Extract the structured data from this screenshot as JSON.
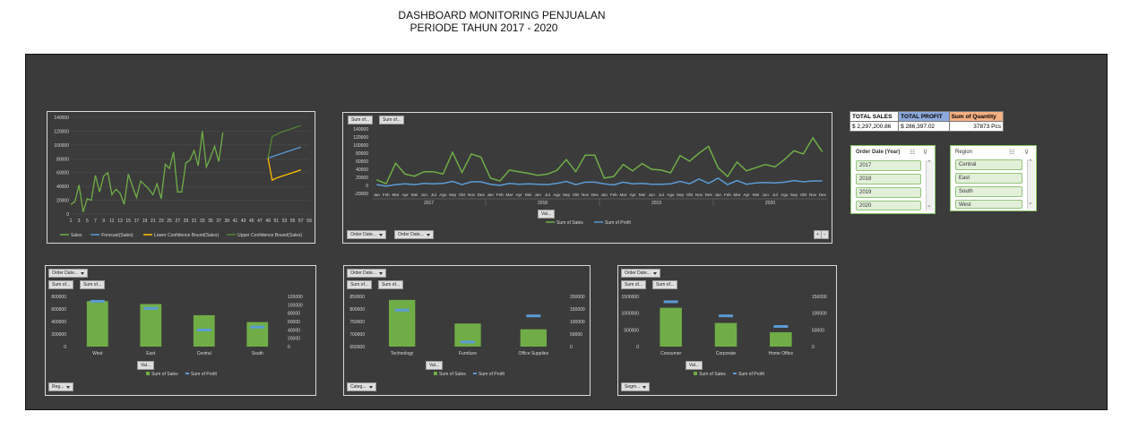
{
  "header": {
    "line1": "DASHBOARD MONITORING PENJUALAN",
    "line2": "PERIODE TAHUN 2017 - 2020"
  },
  "colors": {
    "sales": "#70ad47",
    "profit": "#5b9bd5",
    "lower": "#ffc000",
    "upper": "#548235",
    "panel": "#3b3b3b"
  },
  "kpi": {
    "headers": [
      "TOTAL SALES",
      "TOTAL PROFIT",
      "Sum of Quantity"
    ],
    "values": [
      "$ 2,297,200.86",
      "$ 286,397.02",
      "37873 Pcs"
    ]
  },
  "slicer_year": {
    "title": "Order Date (Year)",
    "items": [
      "2017",
      "2018",
      "2019",
      "2020"
    ]
  },
  "slicer_region": {
    "title": "Region",
    "items": [
      "Central",
      "East",
      "South",
      "West"
    ]
  },
  "forecast_chart": {
    "btns": [],
    "chart_data": {
      "type": "line",
      "ylim": [
        0,
        140000
      ],
      "yticks": [
        "0",
        "20000",
        "40000",
        "60000",
        "80000",
        "100000",
        "120000",
        "140000"
      ],
      "xticks": [
        "1",
        "3",
        "5",
        "7",
        "9",
        "11",
        "13",
        "15",
        "17",
        "19",
        "21",
        "23",
        "25",
        "27",
        "29",
        "31",
        "33",
        "35",
        "37",
        "39",
        "41",
        "43",
        "45",
        "47",
        "49",
        "51",
        "53",
        "55",
        "57",
        "59"
      ],
      "series": [
        {
          "name": "Sales",
          "values": [
            14000,
            18000,
            42000,
            3000,
            22000,
            20000,
            56000,
            32000,
            55000,
            60000,
            28000,
            36000,
            30000,
            14000,
            58000,
            40000,
            24000,
            48000,
            42000,
            36000,
            28000,
            44000,
            22000,
            72000,
            66000,
            90000,
            32000,
            32000,
            74000,
            78000,
            92000,
            70000,
            120000,
            68000,
            82000,
            98000,
            76000,
            118000
          ]
        },
        {
          "name": "Forecast(Sales)",
          "start": 48,
          "values": [
            81000,
            83000,
            85000,
            87000,
            89000,
            91000,
            93000,
            95000,
            97000
          ]
        },
        {
          "name": "Lower Confidence Bound(Sales)",
          "start": 48,
          "values": [
            81000,
            49000,
            52000,
            54000,
            56000,
            58000,
            60000,
            62000,
            64000
          ]
        },
        {
          "name": "Upper Confidence Bound(Sales)",
          "start": 48,
          "values": [
            81000,
            112000,
            115000,
            118000,
            120000,
            122000,
            124000,
            126000,
            128000
          ]
        }
      ]
    }
  },
  "trend_chart": {
    "btns": [
      "Sum of...",
      "Sum of..."
    ],
    "bottom_btns": [
      "Order Date...",
      "Order Date..."
    ],
    "val_btn": "Val...",
    "chart_data": {
      "type": "line",
      "ylim": [
        -20000,
        140000
      ],
      "yticks": [
        "-20000",
        "0",
        "20000",
        "40000",
        "60000",
        "80000",
        "100000",
        "120000",
        "140000"
      ],
      "months": [
        "Jan",
        "Feb",
        "Mar",
        "Apr",
        "Mei",
        "Jun",
        "Jul",
        "Agu",
        "Sep",
        "Okt",
        "Nov",
        "Des"
      ],
      "years": [
        "2017",
        "2018",
        "2019",
        "2020"
      ],
      "series": [
        {
          "name": "Sum of Sales",
          "values": [
            14000,
            4000,
            55000,
            28000,
            23000,
            34000,
            34000,
            28000,
            82000,
            32000,
            78000,
            70000,
            18000,
            11000,
            38000,
            34000,
            30000,
            25000,
            28000,
            37000,
            64000,
            34000,
            75000,
            75000,
            18000,
            22000,
            52000,
            36000,
            54000,
            40000,
            38000,
            31000,
            74000,
            60000,
            80000,
            97000,
            44000,
            22000,
            58000,
            36000,
            44000,
            52000,
            46000,
            64000,
            86000,
            78000,
            118000,
            83000
          ]
        },
        {
          "name": "Sum of Profit",
          "values": [
            2000,
            -2000,
            2000,
            4000,
            2000,
            5000,
            4000,
            5000,
            10000,
            2000,
            9000,
            9000,
            3000,
            0,
            5000,
            3000,
            4000,
            3000,
            2000,
            5000,
            10000,
            2000,
            8000,
            8000,
            4000,
            1000,
            8000,
            4000,
            5000,
            3000,
            3000,
            4000,
            10000,
            4000,
            16000,
            5000,
            18000,
            2000,
            12000,
            3000,
            6000,
            7000,
            6000,
            8000,
            12000,
            9000,
            11000,
            11000
          ]
        }
      ]
    }
  },
  "region_chart": {
    "btns": [
      "Sum of...",
      "Sum of..."
    ],
    "top_btn": "Order Date...",
    "val_btn": "Val...",
    "bottom_btn": "Reg...",
    "chart_data": {
      "type": "bar",
      "categories": [
        "West",
        "East",
        "Central",
        "South"
      ],
      "ylim": [
        0,
        800000
      ],
      "y2lim": [
        0,
        120000
      ],
      "yticks": [
        "0",
        "200000",
        "400000",
        "600000",
        "800000"
      ],
      "y2ticks": [
        "0",
        "20000",
        "40000",
        "60000",
        "80000",
        "100000",
        "120000"
      ],
      "series": [
        {
          "name": "Sum of Sales",
          "values": [
            725458,
            678781,
            501240,
            391722
          ]
        },
        {
          "name": "Sum of Profit",
          "values": [
            108418,
            91523,
            39706,
            46749
          ]
        }
      ]
    }
  },
  "category_chart": {
    "btns": [
      "Sum of...",
      "Sum of..."
    ],
    "top_btn": "Order Date...",
    "val_btn": "Val...",
    "bottom_btn": "Categ...",
    "chart_data": {
      "type": "bar",
      "categories": [
        "Technology",
        "Furniture",
        "Office Supplies"
      ],
      "ylim": [
        650000,
        850000
      ],
      "y2lim": [
        0,
        200000
      ],
      "yticks": [
        "650000",
        "700000",
        "750000",
        "800000",
        "850000"
      ],
      "y2ticks": [
        "0",
        "50000",
        "100000",
        "150000",
        "200000"
      ],
      "series": [
        {
          "name": "Sum of Sales",
          "values": [
            836154,
            741999,
            719047
          ]
        },
        {
          "name": "Sum of Profit",
          "values": [
            145455,
            18451,
            122490
          ]
        }
      ]
    }
  },
  "segment_chart": {
    "btns": [
      "Sum of...",
      "Sum of..."
    ],
    "top_btn": "Order Date...",
    "val_btn": "Val...",
    "bottom_btn": "Segm...",
    "chart_data": {
      "type": "bar",
      "categories": [
        "Consumer",
        "Corporate",
        "Home Office"
      ],
      "ylim": [
        0,
        1500000
      ],
      "y2lim": [
        0,
        150000
      ],
      "yticks": [
        "0",
        "500000",
        "1000000",
        "1500000"
      ],
      "y2ticks": [
        "0",
        "50000",
        "100000",
        "150000"
      ],
      "series": [
        {
          "name": "Sum of Sales",
          "values": [
            1161401,
            706146,
            429653
          ]
        },
        {
          "name": "Sum of Profit",
          "values": [
            134119,
            91979,
            60299
          ]
        }
      ]
    }
  }
}
